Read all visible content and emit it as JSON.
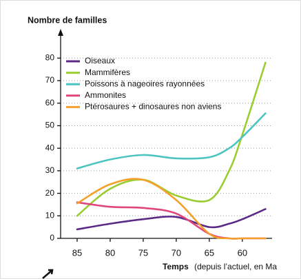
{
  "chart_data": {
    "type": "line",
    "title": "Nombre de familles",
    "xlabel_title": "Temps",
    "xlabel_detail": "(depuis l’actuel, en Ma",
    "x": [
      85,
      80,
      75,
      70,
      65,
      62,
      60,
      56.5
    ],
    "xlim": [
      87.5,
      55.5
    ],
    "xticks": [
      85,
      80,
      75,
      70,
      65,
      60
    ],
    "ylim": [
      0,
      85
    ],
    "yticks": [
      0,
      10,
      20,
      30,
      40,
      50,
      60,
      70,
      80
    ],
    "grid": true,
    "series": [
      {
        "name": "Oiseaux",
        "color": "#5b2a86",
        "values": [
          4,
          6.5,
          8.5,
          9.5,
          5,
          6.5,
          8.5,
          13
        ]
      },
      {
        "name": "Mammifères",
        "color": "#9acd32",
        "values": [
          10,
          22,
          26,
          19,
          17,
          30,
          46,
          78
        ]
      },
      {
        "name": "Poissons à nageoires rayonnées",
        "color": "#4cc4bf",
        "values": [
          31,
          35,
          37,
          35.5,
          36,
          40,
          45,
          55.5
        ]
      },
      {
        "name": "Ammonites",
        "color": "#e0457b",
        "values": [
          16,
          14,
          13.5,
          11,
          2,
          0,
          0,
          0
        ]
      },
      {
        "name": "Ptérosaures + dinosaures non aviens",
        "color": "#f4a12b",
        "values": [
          15.5,
          24,
          26,
          17,
          2,
          0,
          0,
          0
        ]
      }
    ]
  }
}
